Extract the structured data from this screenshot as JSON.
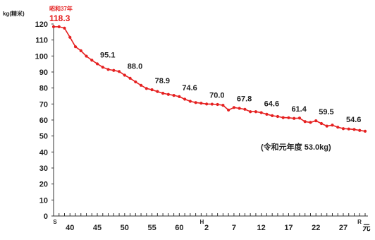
{
  "chart_data": {
    "type": "line",
    "ylabel": "kg(精米)",
    "ylim": [
      0,
      120
    ],
    "yticks": [
      "0",
      "10",
      "20",
      "30",
      "40",
      "50",
      "60",
      "70",
      "80",
      "90",
      "100",
      "110",
      "120"
    ],
    "xlim": [
      1962,
      2019
    ],
    "xticks": [
      {
        "year": 1962,
        "label": "S"
      },
      {
        "year": 1965,
        "label": "40"
      },
      {
        "year": 1970,
        "label": "45"
      },
      {
        "year": 1975,
        "label": "50"
      },
      {
        "year": 1980,
        "label": "55"
      },
      {
        "year": 1985,
        "label": "60"
      },
      {
        "year": 1989,
        "label": "H"
      },
      {
        "year": 1990,
        "label": "2"
      },
      {
        "year": 1995,
        "label": "7"
      },
      {
        "year": 2000,
        "label": "12"
      },
      {
        "year": 2005,
        "label": "17"
      },
      {
        "year": 2010,
        "label": "22"
      },
      {
        "year": 2015,
        "label": "27"
      },
      {
        "year": 2019,
        "label": "R"
      },
      {
        "year": 2019,
        "label": "元"
      }
    ],
    "peak_note": "昭和37年",
    "peak_value": "118.3",
    "footnote": "(令和元年度  53.0kg)",
    "labels": [
      {
        "year": 1962,
        "text": "118.3"
      },
      {
        "year": 1970,
        "text": "95.1"
      },
      {
        "year": 1975,
        "text": "88.0"
      },
      {
        "year": 1980,
        "text": "78.9"
      },
      {
        "year": 1985,
        "text": "74.6"
      },
      {
        "year": 1990,
        "text": "70.0"
      },
      {
        "year": 1995,
        "text": "67.8"
      },
      {
        "year": 2000,
        "text": "64.6"
      },
      {
        "year": 2005,
        "text": "61.4"
      },
      {
        "year": 2010,
        "text": "59.5"
      },
      {
        "year": 2015,
        "text": "54.6"
      }
    ],
    "series": [
      {
        "color": "#e52020",
        "x": [
          1962,
          1963,
          1964,
          1965,
          1966,
          1967,
          1968,
          1969,
          1970,
          1971,
          1972,
          1973,
          1974,
          1975,
          1976,
          1977,
          1978,
          1979,
          1980,
          1981,
          1982,
          1983,
          1984,
          1985,
          1986,
          1987,
          1988,
          1989,
          1990,
          1991,
          1992,
          1993,
          1994,
          1995,
          1996,
          1997,
          1998,
          1999,
          2000,
          2001,
          2002,
          2003,
          2004,
          2005,
          2006,
          2007,
          2008,
          2009,
          2010,
          2011,
          2012,
          2013,
          2014,
          2015,
          2016,
          2017,
          2018,
          2019
        ],
        "y": [
          118.3,
          118.3,
          117.4,
          111.7,
          105.8,
          103.3,
          99.9,
          97.4,
          95.1,
          93.0,
          91.6,
          91.0,
          90.3,
          88.0,
          86.1,
          83.8,
          81.7,
          79.7,
          78.9,
          77.8,
          76.7,
          76.0,
          75.4,
          74.6,
          73.0,
          71.7,
          70.9,
          70.5,
          70.0,
          69.9,
          69.7,
          69.2,
          66.2,
          67.8,
          67.3,
          66.7,
          65.2,
          65.2,
          64.6,
          63.6,
          62.7,
          62.2,
          61.5,
          61.4,
          61.0,
          61.2,
          59.0,
          58.5,
          59.5,
          57.8,
          56.2,
          56.8,
          55.5,
          54.6,
          54.4,
          54.1,
          53.5,
          53.0
        ]
      }
    ]
  }
}
